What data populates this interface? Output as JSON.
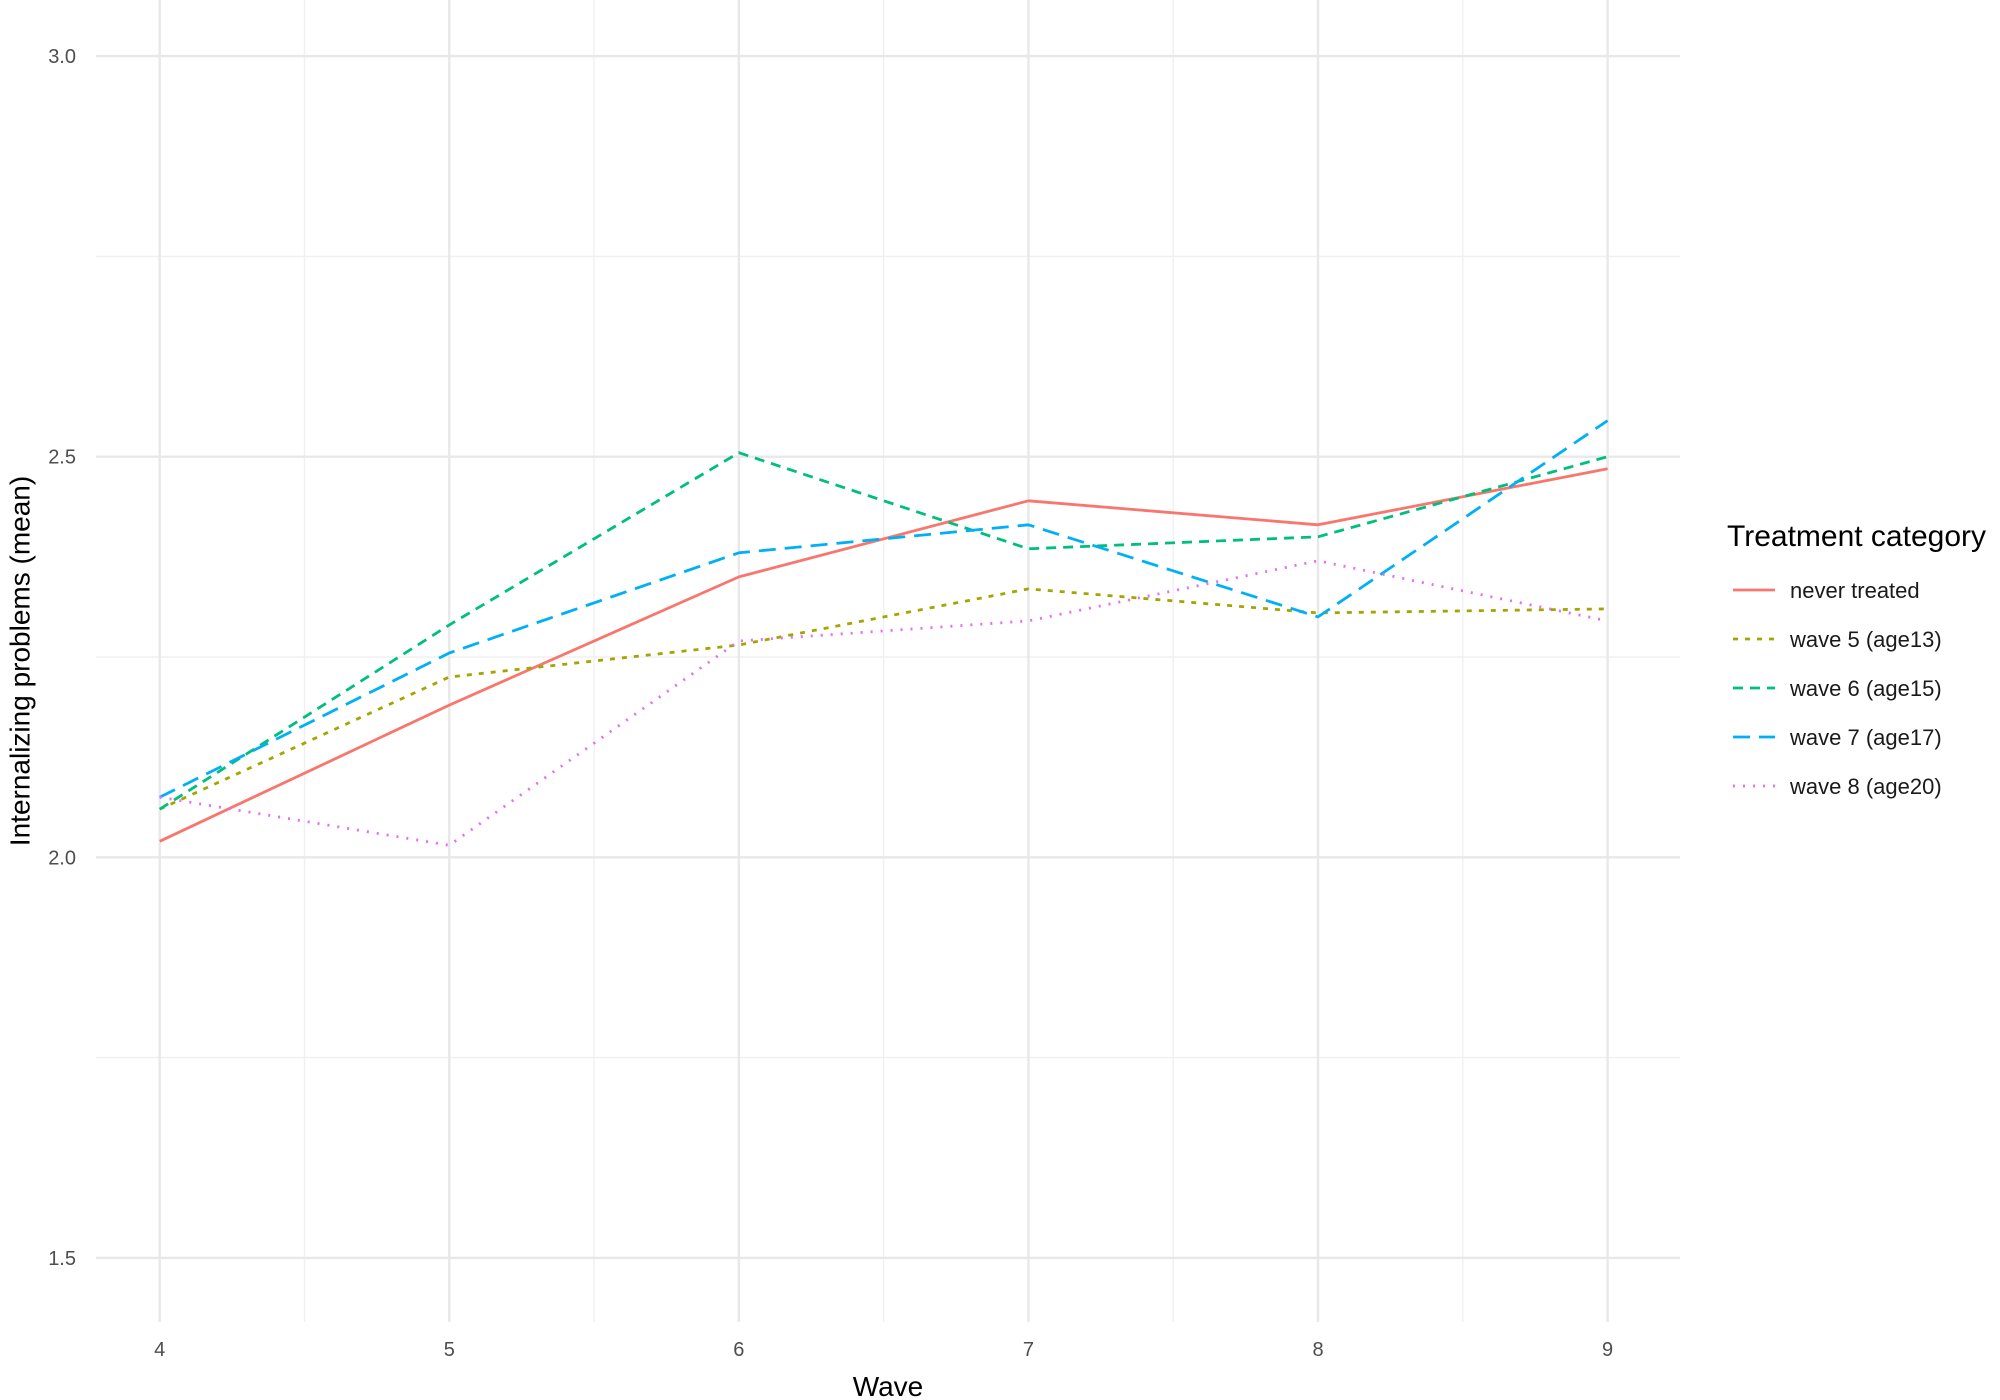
{
  "chart_data": {
    "type": "line",
    "xlabel": "Wave",
    "ylabel": "Internalizing problems (mean)",
    "x": [
      4,
      5,
      6,
      7,
      8,
      9
    ],
    "xlim": [
      3.78,
      9.25
    ],
    "ylim": [
      1.42,
      3.07
    ],
    "xticks": [
      4,
      5,
      6,
      7,
      8,
      9
    ],
    "yticks": [
      1.5,
      2.0,
      2.5,
      3.0
    ],
    "ytick_labels": [
      "1.5",
      "2.0",
      "2.5",
      "3.0"
    ],
    "grid": true,
    "legend": {
      "title": "Treatment category",
      "position": "right"
    },
    "series": [
      {
        "name": "never treated",
        "color": "#F8766D",
        "dash": "solid",
        "values": [
          2.02,
          2.19,
          2.35,
          2.445,
          2.415,
          2.485
        ]
      },
      {
        "name": "wave 5 (age13)",
        "color": "#A3A500",
        "dash": "dotted-short",
        "values": [
          2.06,
          2.225,
          2.265,
          2.335,
          2.305,
          2.31
        ]
      },
      {
        "name": "wave 6 (age15)",
        "color": "#00BF7D",
        "dash": "dashed",
        "values": [
          2.06,
          2.29,
          2.505,
          2.385,
          2.4,
          2.5
        ]
      },
      {
        "name": "wave 7 (age17)",
        "color": "#00B0F6",
        "dash": "longdash",
        "values": [
          2.075,
          2.255,
          2.38,
          2.415,
          2.3,
          2.545
        ]
      },
      {
        "name": "wave 8 (age20)",
        "color": "#E76BF3",
        "dash": "dotted",
        "values": [
          2.075,
          2.015,
          2.27,
          2.295,
          2.37,
          2.295
        ]
      }
    ]
  }
}
